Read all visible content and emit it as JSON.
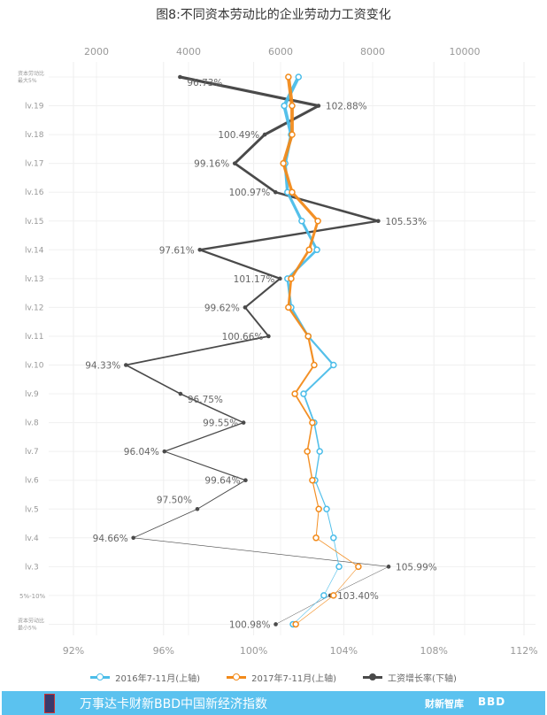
{
  "chart_data": {
    "type": "line",
    "title": "图8:不同资本劳动比的企业劳动力工资变化",
    "categories": [
      "资本劳动比最大5%",
      "lv.19",
      "lv.18",
      "lv.17",
      "lv.16",
      "lv.15",
      "lv.14",
      "lv.13",
      "lv.12",
      "lv.11",
      "lv.10",
      "lv.9",
      "lv.8",
      "lv.7",
      "lv.6",
      "lv.5",
      "lv.4",
      "lv.3",
      "5%-10%",
      "资本劳动比最小5%"
    ],
    "top_axis": {
      "ticks": [
        "2000",
        "4000",
        "6000",
        "8000",
        "10000"
      ],
      "values": [
        2000,
        4000,
        6000,
        8000,
        10000
      ],
      "range": [
        0,
        11700
      ]
    },
    "bottom_axis": {
      "ticks": [
        "92%",
        "96%",
        "100%",
        "104%",
        "108%",
        "112%"
      ],
      "values": [
        92,
        96,
        100,
        104,
        108,
        112
      ],
      "range": [
        92,
        112
      ]
    },
    "series": [
      {
        "name": "2016年7-11月(上轴)",
        "axis": "top",
        "color": "#4bbde9",
        "values": [
          6390,
          6080,
          6230,
          6100,
          6150,
          6460,
          6790,
          6150,
          6230,
          6600,
          7150,
          6500,
          6730,
          6850,
          6750,
          7000,
          7150,
          7270,
          6940,
          6270
        ]
      },
      {
        "name": "2017年7-11月(上轴)",
        "axis": "top",
        "color": "#f28a1a",
        "values": [
          6170,
          6250,
          6250,
          6060,
          6250,
          6810,
          6620,
          6230,
          6170,
          6600,
          6730,
          6310,
          6690,
          6580,
          6690,
          6830,
          6770,
          7690,
          7150,
          6330
        ]
      },
      {
        "name": "工资增长率(下轴)",
        "axis": "bottom",
        "color": "#4a4a4a",
        "values": [
          96.73,
          102.88,
          100.49,
          99.16,
          100.97,
          105.53,
          97.61,
          101.17,
          99.62,
          100.66,
          94.33,
          96.75,
          99.55,
          96.04,
          99.64,
          97.5,
          94.66,
          105.99,
          103.4,
          100.98
        ],
        "labels": [
          "96.73%",
          "102.88%",
          "100.49%",
          "99.16%",
          "100.97%",
          "105.53%",
          "97.61%",
          "101.17%",
          "99.62%",
          "100.66%",
          "94.33%",
          "96.75%",
          "99.55%",
          "96.04%",
          "99.64%",
          "97.50%",
          "94.66%",
          "105.99%",
          "103.40%",
          "100.98%"
        ]
      }
    ],
    "grid": true,
    "legend": "bottom"
  },
  "footer": {
    "text": "万事达卡财新BBD中国新经济指数",
    "brand1": "财新智库",
    "brand2": "BBD"
  }
}
